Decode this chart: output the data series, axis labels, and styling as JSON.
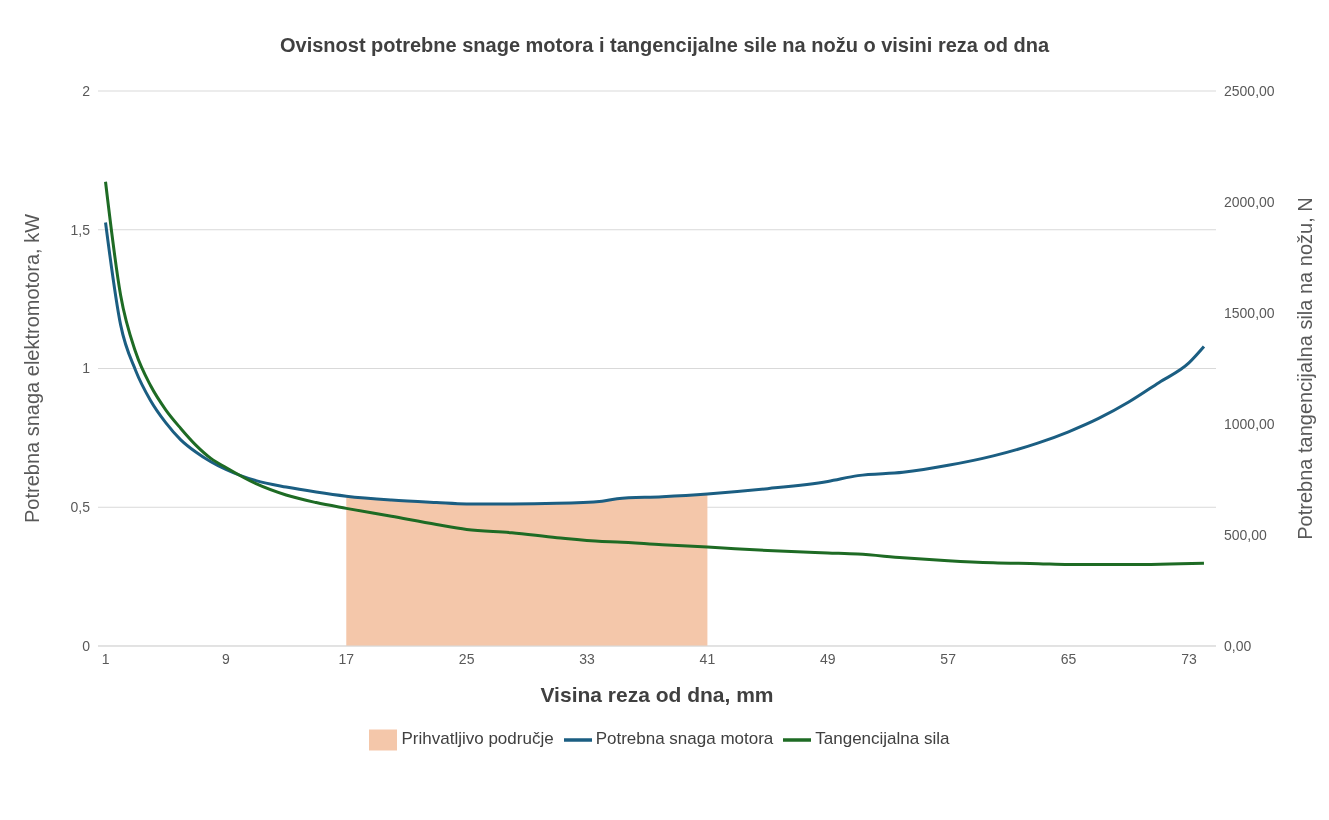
{
  "chart_data": {
    "type": "line",
    "title": "Ovisnost potrebne snage motora i tangencijalne sile na nožu o visini reza od dna",
    "xlabel": "Visina reza od dna, mm",
    "ylabel": "Potrebna snaga elektromotora, kW",
    "y2label": "Potrebna tangencijalna sila na nožu, N",
    "xlim": [
      0.5,
      74.8
    ],
    "xticks": [
      1,
      9,
      17,
      25,
      33,
      41,
      49,
      57,
      65,
      73
    ],
    "ylim": [
      0,
      2
    ],
    "yticks": [
      0,
      {
        "value": 0.5,
        "label": "0,5"
      },
      1,
      {
        "value": 1.5,
        "label": "1,5"
      },
      2
    ],
    "y2lim": [
      0,
      2500
    ],
    "y2ticks": [
      {
        "value": 0,
        "label": "0,00"
      },
      {
        "value": 500,
        "label": "500,00"
      },
      {
        "value": 1000,
        "label": "1000,00"
      },
      {
        "value": 1500,
        "label": "1500,00"
      },
      {
        "value": 2000,
        "label": "2000,00"
      },
      {
        "value": 2500,
        "label": "2500,00"
      }
    ],
    "grid": "y",
    "legend": "bottom",
    "line_style": "solid",
    "marker": "none",
    "series": [
      {
        "name": "Prihvatljivo područje",
        "type": "area",
        "color": "#f4c7aa",
        "x": [
          17,
          20,
          23,
          25,
          28,
          31,
          34,
          35,
          38,
          41
        ],
        "values": [
          0.54,
          0.526,
          0.517,
          0.512,
          0.512,
          0.514,
          0.522,
          0.531,
          0.538,
          0.548
        ]
      },
      {
        "name": "Potrebna snaga motora",
        "color": "#1b5e82",
        "x": [
          1,
          2,
          3,
          4,
          5,
          6,
          7,
          8,
          9,
          11,
          13,
          15,
          17,
          20,
          23,
          25,
          28,
          31,
          34,
          35,
          38,
          41,
          45,
          49,
          51,
          54,
          57,
          60,
          63,
          65,
          67,
          69,
          71,
          73,
          74
        ],
        "values": [
          1.526,
          1.158,
          0.993,
          0.884,
          0.805,
          0.743,
          0.699,
          0.664,
          0.636,
          0.596,
          0.573,
          0.555,
          0.54,
          0.526,
          0.517,
          0.512,
          0.512,
          0.514,
          0.522,
          0.531,
          0.538,
          0.548,
          0.567,
          0.593,
          0.614,
          0.626,
          0.651,
          0.685,
          0.732,
          0.772,
          0.82,
          0.879,
          0.949,
          1.02,
          1.079
        ]
      },
      {
        "name": "Tangencijalna sila",
        "axis": "y2",
        "color": "#1e6b24",
        "x": [
          1,
          2,
          3,
          4,
          5,
          6,
          7,
          8,
          9,
          11,
          13,
          15,
          17,
          20,
          23,
          25,
          28,
          31,
          34,
          35,
          38,
          41,
          45,
          49,
          51,
          54,
          57,
          60,
          63,
          65,
          69,
          74
        ],
        "values": [
          2091,
          1581,
          1324,
          1172,
          1064,
          980,
          905,
          845,
          804,
          731,
          680,
          646,
          620,
          584,
          547,
          525,
          510,
          488,
          471,
          469,
          456,
          446,
          430,
          419,
          414,
          397,
          384,
          375,
          371,
          367,
          367,
          373
        ]
      }
    ]
  }
}
